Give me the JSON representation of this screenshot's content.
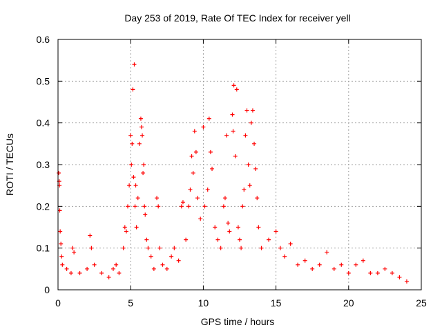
{
  "chart_data": {
    "type": "scatter",
    "title": "Day 253 of 2019, Rate Of TEC Index for receiver yell",
    "xlabel": "GPS time / hours",
    "ylabel": "ROTI / TECUs",
    "xlim": [
      0,
      25
    ],
    "ylim": [
      0,
      0.6
    ],
    "xticks": [
      "0",
      "5",
      "10",
      "15",
      "20",
      "25"
    ],
    "yticks": [
      "0",
      "0.1",
      "0.2",
      "0.3",
      "0.4",
      "0.5",
      "0.6"
    ],
    "grid": true,
    "marker": "+",
    "color": "#ff0000",
    "series": [
      {
        "points": [
          [
            0.05,
            0.28
          ],
          [
            0.08,
            0.26
          ],
          [
            0.1,
            0.25
          ],
          [
            0.12,
            0.19
          ],
          [
            0.15,
            0.14
          ],
          [
            0.2,
            0.11
          ],
          [
            0.25,
            0.08
          ],
          [
            0.3,
            0.06
          ],
          [
            0.6,
            0.05
          ],
          [
            0.9,
            0.04
          ],
          [
            1.0,
            0.1
          ],
          [
            1.1,
            0.09
          ],
          [
            1.5,
            0.04
          ],
          [
            2.0,
            0.05
          ],
          [
            2.2,
            0.13
          ],
          [
            2.3,
            0.1
          ],
          [
            2.5,
            0.06
          ],
          [
            3.0,
            0.04
          ],
          [
            3.5,
            0.03
          ],
          [
            3.8,
            0.05
          ],
          [
            4.0,
            0.06
          ],
          [
            4.2,
            0.04
          ],
          [
            4.5,
            0.1
          ],
          [
            4.6,
            0.15
          ],
          [
            4.7,
            0.14
          ],
          [
            4.8,
            0.2
          ],
          [
            4.9,
            0.25
          ],
          [
            5.0,
            0.37
          ],
          [
            5.05,
            0.3
          ],
          [
            5.1,
            0.35
          ],
          [
            5.15,
            0.48
          ],
          [
            5.2,
            0.27
          ],
          [
            5.25,
            0.54
          ],
          [
            5.3,
            0.2
          ],
          [
            5.35,
            0.25
          ],
          [
            5.4,
            0.15
          ],
          [
            5.5,
            0.22
          ],
          [
            5.6,
            0.35
          ],
          [
            5.7,
            0.41
          ],
          [
            5.75,
            0.39
          ],
          [
            5.8,
            0.37
          ],
          [
            5.85,
            0.28
          ],
          [
            5.9,
            0.3
          ],
          [
            5.95,
            0.2
          ],
          [
            6.0,
            0.18
          ],
          [
            6.1,
            0.12
          ],
          [
            6.2,
            0.1
          ],
          [
            6.4,
            0.08
          ],
          [
            6.6,
            0.05
          ],
          [
            6.8,
            0.22
          ],
          [
            6.9,
            0.2
          ],
          [
            7.0,
            0.1
          ],
          [
            7.2,
            0.06
          ],
          [
            7.5,
            0.05
          ],
          [
            7.8,
            0.08
          ],
          [
            8.0,
            0.1
          ],
          [
            8.3,
            0.07
          ],
          [
            8.5,
            0.2
          ],
          [
            8.6,
            0.21
          ],
          [
            8.8,
            0.12
          ],
          [
            9.0,
            0.2
          ],
          [
            9.1,
            0.24
          ],
          [
            9.2,
            0.32
          ],
          [
            9.3,
            0.28
          ],
          [
            9.4,
            0.38
          ],
          [
            9.5,
            0.33
          ],
          [
            9.6,
            0.22
          ],
          [
            9.8,
            0.17
          ],
          [
            10.0,
            0.39
          ],
          [
            10.1,
            0.2
          ],
          [
            10.3,
            0.24
          ],
          [
            10.4,
            0.41
          ],
          [
            10.5,
            0.33
          ],
          [
            10.6,
            0.29
          ],
          [
            10.8,
            0.15
          ],
          [
            11.0,
            0.12
          ],
          [
            11.2,
            0.1
          ],
          [
            11.4,
            0.2
          ],
          [
            11.5,
            0.22
          ],
          [
            11.6,
            0.37
          ],
          [
            11.7,
            0.16
          ],
          [
            11.8,
            0.14
          ],
          [
            12.0,
            0.42
          ],
          [
            12.05,
            0.38
          ],
          [
            12.1,
            0.49
          ],
          [
            12.2,
            0.32
          ],
          [
            12.3,
            0.48
          ],
          [
            12.4,
            0.15
          ],
          [
            12.5,
            0.12
          ],
          [
            12.6,
            0.1
          ],
          [
            12.7,
            0.2
          ],
          [
            12.8,
            0.24
          ],
          [
            12.9,
            0.37
          ],
          [
            13.0,
            0.43
          ],
          [
            13.1,
            0.3
          ],
          [
            13.2,
            0.25
          ],
          [
            13.3,
            0.4
          ],
          [
            13.4,
            0.43
          ],
          [
            13.5,
            0.35
          ],
          [
            13.6,
            0.29
          ],
          [
            13.7,
            0.22
          ],
          [
            13.8,
            0.15
          ],
          [
            14.0,
            0.1
          ],
          [
            14.5,
            0.12
          ],
          [
            15.0,
            0.14
          ],
          [
            15.3,
            0.1
          ],
          [
            15.6,
            0.08
          ],
          [
            16.0,
            0.11
          ],
          [
            16.5,
            0.06
          ],
          [
            17.0,
            0.07
          ],
          [
            17.5,
            0.05
          ],
          [
            18.0,
            0.06
          ],
          [
            18.5,
            0.09
          ],
          [
            19.0,
            0.05
          ],
          [
            19.5,
            0.06
          ],
          [
            20.0,
            0.04
          ],
          [
            20.5,
            0.06
          ],
          [
            21.0,
            0.07
          ],
          [
            21.5,
            0.04
          ],
          [
            22.0,
            0.04
          ],
          [
            22.5,
            0.05
          ],
          [
            23.0,
            0.04
          ],
          [
            23.5,
            0.03
          ],
          [
            24.0,
            0.02
          ]
        ]
      }
    ]
  }
}
